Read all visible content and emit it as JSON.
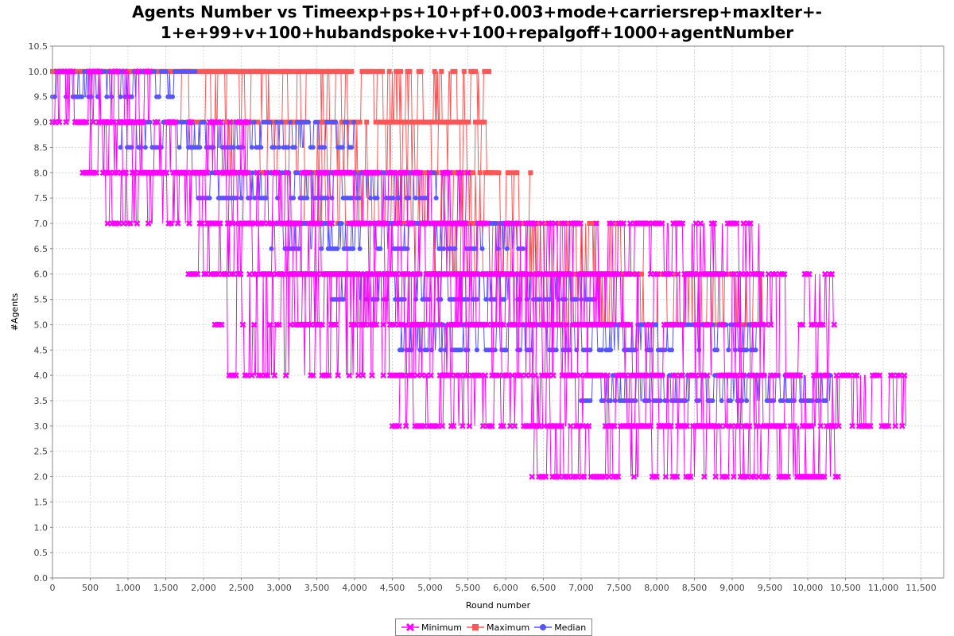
{
  "chart_data": {
    "type": "line",
    "title": "Agents Number vs Timeexp+ps+10+pf+0.003+mode+carriersrep+maxIter+-1+e+99+v+100+hubandspoke+v+100+repalgoff+1000+agentNumber",
    "title_lines": [
      "Agents Number vs Timeexp+ps+10+pf+0.003+mode+carriersrep+maxIter+-",
      "1+e+99+v+100+hubandspoke+v+100+repalgoff+1000+agentNumber"
    ],
    "xlabel": "Round number",
    "ylabel": "#Agents",
    "xlim": [
      0,
      11800
    ],
    "ylim": [
      0,
      10.5
    ],
    "xticks": [
      0,
      500,
      1000,
      1500,
      2000,
      2500,
      3000,
      3500,
      4000,
      4500,
      5000,
      5500,
      6000,
      6500,
      7000,
      7500,
      8000,
      8500,
      9000,
      9500,
      10000,
      10500,
      11000,
      11500
    ],
    "xtick_labels": [
      "0",
      "500",
      "1,000",
      "1,500",
      "2,000",
      "2,500",
      "3,000",
      "3,500",
      "4,000",
      "4,500",
      "5,000",
      "5,500",
      "6,000",
      "6,500",
      "7,000",
      "7,500",
      "8,000",
      "8,500",
      "9,000",
      "9,500",
      "10,000",
      "10,500",
      "11,000",
      "11,500"
    ],
    "yticks": [
      0,
      0.5,
      1,
      1.5,
      2,
      2.5,
      3,
      3.5,
      4,
      4.5,
      5,
      5.5,
      6,
      6.5,
      7,
      7.5,
      8,
      8.5,
      9,
      9.5,
      10,
      10.5
    ],
    "ytick_labels": [
      "0.0",
      "0.5",
      "1.0",
      "1.5",
      "2.0",
      "2.5",
      "3.0",
      "3.5",
      "4.0",
      "4.5",
      "5.0",
      "5.5",
      "6.0",
      "6.5",
      "7.0",
      "7.5",
      "8.0",
      "8.5",
      "9.0",
      "9.5",
      "10.0",
      "10.5"
    ],
    "grid": true,
    "legend_position": "bottom-center",
    "series": [
      {
        "name": "Maximum",
        "color": "#ff5555",
        "marker": "square",
        "segments": [
          {
            "x_start": 0,
            "x_end": 3980,
            "values": [
              10
            ]
          },
          {
            "x_start": 1700,
            "x_end": 5800,
            "values": [
              9,
              10
            ]
          },
          {
            "x_start": 2300,
            "x_end": 5820,
            "values": [
              8,
              9
            ]
          },
          {
            "x_start": 3300,
            "x_end": 6330,
            "values": [
              7,
              8
            ]
          },
          {
            "x_start": 4800,
            "x_end": 7900,
            "values": [
              6,
              7
            ]
          },
          {
            "x_start": 6300,
            "x_end": 9400,
            "values": [
              5,
              6
            ]
          }
        ]
      },
      {
        "name": "Median",
        "color": "#5555ff",
        "marker": "circle",
        "segments": [
          {
            "x_start": 0,
            "x_end": 1900,
            "values": [
              9.5,
              10
            ]
          },
          {
            "x_start": 900,
            "x_end": 4000,
            "values": [
              8.5,
              9
            ]
          },
          {
            "x_start": 1900,
            "x_end": 5100,
            "values": [
              7.5,
              8
            ]
          },
          {
            "x_start": 2900,
            "x_end": 6250,
            "values": [
              6.5,
              7
            ]
          },
          {
            "x_start": 3700,
            "x_end": 7300,
            "values": [
              5.5,
              6
            ]
          },
          {
            "x_start": 4600,
            "x_end": 9450,
            "values": [
              4.5,
              5
            ]
          },
          {
            "x_start": 7000,
            "x_end": 10300,
            "values": [
              3.5,
              4
            ]
          }
        ]
      },
      {
        "name": "Minimum",
        "color": "#ff00ff",
        "marker": "x",
        "segments": [
          {
            "x_start": 0,
            "x_end": 1300,
            "values": [
              9,
              10
            ]
          },
          {
            "x_start": 400,
            "x_end": 2600,
            "values": [
              8,
              9
            ]
          },
          {
            "x_start": 700,
            "x_end": 5500,
            "values": [
              7,
              8
            ]
          },
          {
            "x_start": 1800,
            "x_end": 9400,
            "values": [
              6,
              7
            ]
          },
          {
            "x_start": 2150,
            "x_end": 2250,
            "values": [
              5
            ]
          },
          {
            "x_start": 3150,
            "x_end": 7500,
            "values": [
              5,
              6
            ]
          },
          {
            "x_start": 2250,
            "x_end": 10350,
            "values": [
              4,
              5,
              6
            ]
          },
          {
            "x_start": 4500,
            "x_end": 11300,
            "values": [
              3,
              4
            ]
          },
          {
            "x_start": 6350,
            "x_end": 10420,
            "values": [
              2,
              3
            ]
          }
        ]
      }
    ]
  }
}
